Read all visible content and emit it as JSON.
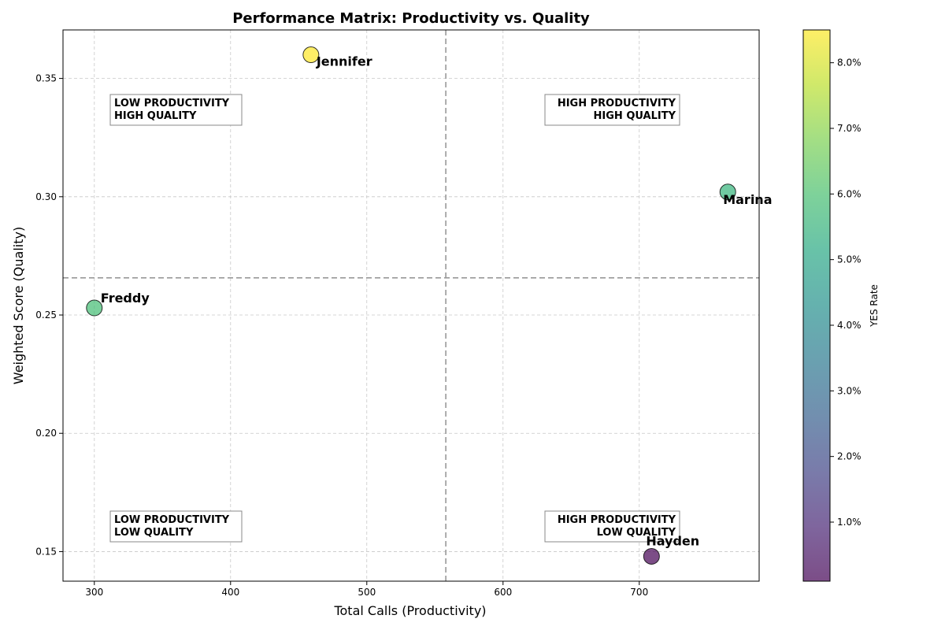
{
  "chart_data": {
    "type": "scatter",
    "title": "Performance Matrix: Productivity vs. Quality",
    "xlabel": "Total Calls (Productivity)",
    "ylabel": "Weighted Score (Quality)",
    "xlim": [
      277,
      788
    ],
    "ylim": [
      0.1375,
      0.3705
    ],
    "xticks": [
      300,
      400,
      500,
      600,
      700
    ],
    "yticks": [
      0.15,
      0.2,
      0.25,
      0.3,
      0.35
    ],
    "ytick_labels": [
      "0.15",
      "0.20",
      "0.25",
      "0.30",
      "0.35"
    ],
    "grid": true,
    "threshold_x": 558,
    "threshold_y": 0.2657,
    "points": [
      {
        "name": "Jennifer",
        "x": 459,
        "y": 0.36,
        "yes_rate": 8.5
      },
      {
        "name": "Marina",
        "x": 765,
        "y": 0.302,
        "yes_rate": 5.6
      },
      {
        "name": "Freddy",
        "x": 300,
        "y": 0.253,
        "yes_rate": 5.9
      },
      {
        "name": "Hayden",
        "x": 709,
        "y": 0.148,
        "yes_rate": 0.1
      }
    ],
    "quadrant_labels": {
      "top_left": [
        "LOW PRODUCTIVITY",
        "HIGH QUALITY"
      ],
      "top_right": [
        "HIGH PRODUCTIVITY",
        "HIGH QUALITY"
      ],
      "bottom_left": [
        "LOW PRODUCTIVITY",
        "LOW QUALITY"
      ],
      "bottom_right": [
        "HIGH PRODUCTIVITY",
        "LOW QUALITY"
      ]
    },
    "colorbar": {
      "label": "YES Rate",
      "range": [
        0.1,
        8.5
      ],
      "ticks": [
        1,
        2,
        3,
        4,
        5,
        6,
        7,
        8
      ],
      "tick_labels": [
        "1.0%",
        "2.0%",
        "3.0%",
        "4.0%",
        "5.0%",
        "6.0%",
        "7.0%",
        "8.0%"
      ],
      "colormap": "viridis",
      "alpha": 0.7
    }
  }
}
